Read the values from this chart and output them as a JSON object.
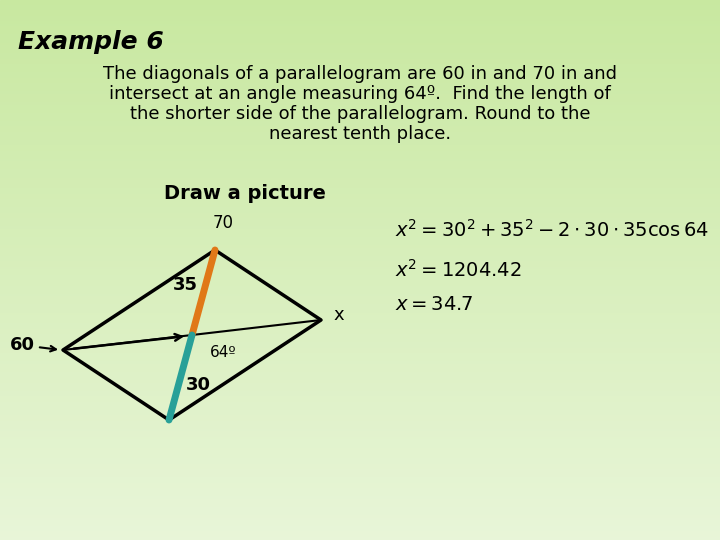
{
  "title": "Example 6",
  "body_text_line1": "The diagonals of a parallelogram are 60 in and 70 in and",
  "body_text_line2": "intersect at an angle measuring 64º.  Find the length of",
  "body_text_line3": "the shorter side of the parallelogram. Round to the",
  "body_text_line4": "nearest tenth place.",
  "subtitle": "Draw a picture",
  "bg_color": "#dff0c0",
  "bg_color_tl": "#e8f5d8",
  "bg_color_br": "#c8e8a0",
  "parallelogram_color": "#000000",
  "parallelogram_lw": 2.5,
  "diagonal_lw": 1.5,
  "colored_lw": 5.0,
  "orange_color": "#e07818",
  "teal_color": "#28a098",
  "arrow_color": "#000000",
  "label_60": "60",
  "label_35": "35",
  "label_30": "30",
  "label_64": "64º",
  "label_x": "x",
  "label_70": "70",
  "title_fontsize": 18,
  "body_fontsize": 13,
  "subtitle_fontsize": 14,
  "label_fontsize": 13,
  "eq_fontsize": 14
}
